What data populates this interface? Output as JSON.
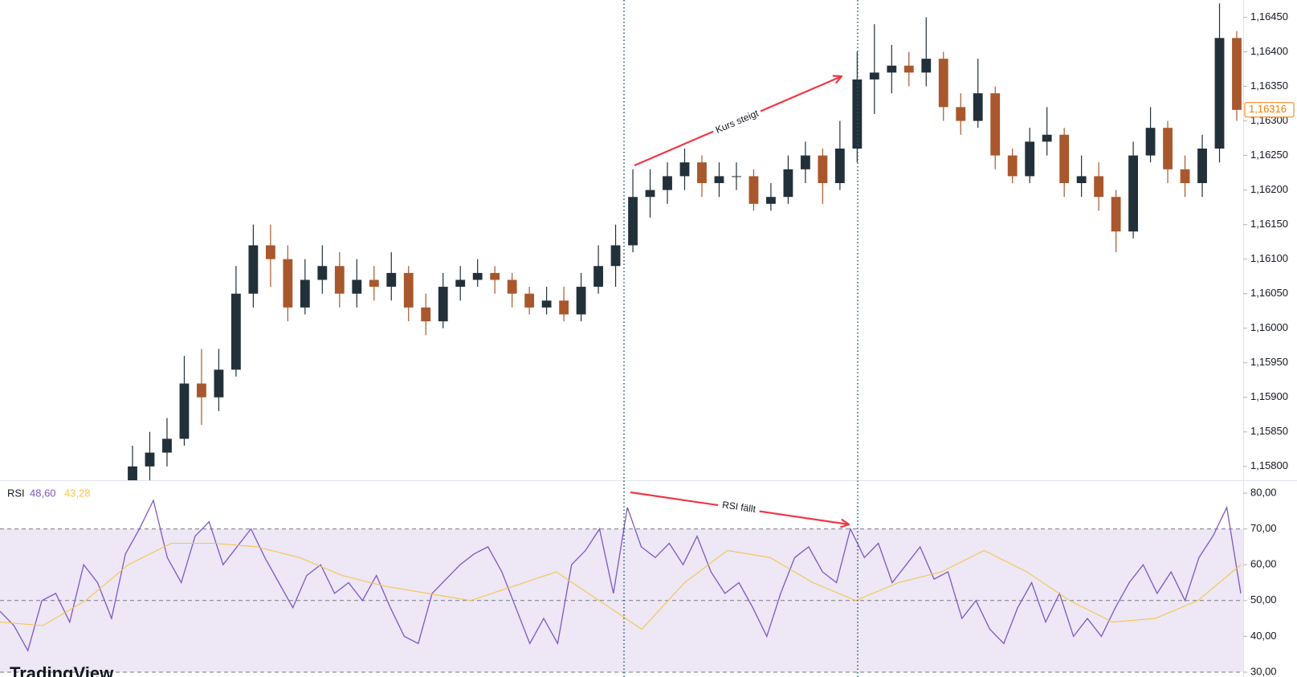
{
  "logo": "TradingView",
  "chart_data": [
    {
      "type": "candlestick",
      "open": [
        1.1578,
        1.158,
        1.1582,
        1.1584,
        1.1592,
        1.159,
        1.1594,
        1.1605,
        1.1612,
        1.161,
        1.1603,
        1.1607,
        1.1609,
        1.1605,
        1.1607,
        1.1606,
        1.1608,
        1.1603,
        1.1601,
        1.1606,
        1.1607,
        1.1608,
        1.1607,
        1.1605,
        1.1603,
        1.1604,
        1.1602,
        1.1606,
        1.1609,
        1.1612,
        1.1619,
        1.162,
        1.1622,
        1.1624,
        1.1621,
        1.1622,
        1.1622,
        1.1618,
        1.1619,
        1.1623,
        1.1625,
        1.1621,
        1.1626,
        1.1636,
        1.1637,
        1.1638,
        1.1637,
        1.1639,
        1.1632,
        1.163,
        1.1634,
        1.1625,
        1.1622,
        1.1627,
        1.1628,
        1.1621,
        1.1622,
        1.1619,
        1.1614,
        1.1625,
        1.1629,
        1.1623,
        1.1621,
        1.1626,
        1.1642
      ],
      "high": [
        1.1583,
        1.1585,
        1.1587,
        1.1596,
        1.1597,
        1.1597,
        1.1609,
        1.1615,
        1.1615,
        1.1612,
        1.161,
        1.1612,
        1.1611,
        1.161,
        1.1609,
        1.1611,
        1.1609,
        1.1605,
        1.1608,
        1.1609,
        1.161,
        1.1609,
        1.1608,
        1.1606,
        1.1606,
        1.1606,
        1.1608,
        1.1612,
        1.1615,
        1.1623,
        1.1623,
        1.1624,
        1.1626,
        1.1625,
        1.1624,
        1.1624,
        1.1623,
        1.1621,
        1.1625,
        1.1627,
        1.1626,
        1.163,
        1.164,
        1.1644,
        1.1641,
        1.164,
        1.1645,
        1.164,
        1.1634,
        1.1639,
        1.1635,
        1.1626,
        1.1629,
        1.1632,
        1.1629,
        1.1625,
        1.1624,
        1.162,
        1.1627,
        1.1632,
        1.163,
        1.1625,
        1.1628,
        1.1647,
        1.1643
      ],
      "low": [
        1.1576,
        1.1578,
        1.158,
        1.1583,
        1.1586,
        1.1588,
        1.1593,
        1.1603,
        1.1606,
        1.1601,
        1.1602,
        1.1605,
        1.1603,
        1.1603,
        1.1604,
        1.1604,
        1.1601,
        1.1599,
        1.16,
        1.1604,
        1.1606,
        1.1605,
        1.1603,
        1.1602,
        1.1602,
        1.1601,
        1.1601,
        1.1605,
        1.1606,
        1.1611,
        1.1616,
        1.1618,
        1.162,
        1.1619,
        1.1619,
        1.162,
        1.1617,
        1.1617,
        1.1618,
        1.1621,
        1.1618,
        1.162,
        1.1624,
        1.1631,
        1.1634,
        1.1635,
        1.1635,
        1.163,
        1.1628,
        1.1629,
        1.1623,
        1.1621,
        1.1621,
        1.1625,
        1.1619,
        1.1619,
        1.1617,
        1.1611,
        1.1613,
        1.1624,
        1.1621,
        1.1619,
        1.1619,
        1.1624,
        1.163
      ],
      "close": [
        1.158,
        1.1582,
        1.1584,
        1.1592,
        1.159,
        1.1594,
        1.1605,
        1.1612,
        1.161,
        1.1603,
        1.1607,
        1.1609,
        1.1605,
        1.1607,
        1.1606,
        1.1608,
        1.1603,
        1.1601,
        1.1606,
        1.1607,
        1.1608,
        1.1607,
        1.1605,
        1.1603,
        1.1604,
        1.1602,
        1.1606,
        1.1609,
        1.1612,
        1.1619,
        1.162,
        1.1622,
        1.1624,
        1.1621,
        1.1622,
        1.1622,
        1.1618,
        1.1619,
        1.1623,
        1.1625,
        1.1621,
        1.1626,
        1.1636,
        1.1637,
        1.1638,
        1.1637,
        1.1639,
        1.1632,
        1.163,
        1.1634,
        1.1625,
        1.1622,
        1.1627,
        1.1628,
        1.1621,
        1.1622,
        1.1619,
        1.1614,
        1.1625,
        1.1629,
        1.1623,
        1.1621,
        1.1626,
        1.1642,
        1.16316
      ],
      "up_color": "#22303a",
      "down_color": "#a8582c",
      "ylim": [
        1.1578,
        1.16475
      ],
      "yticks": [
        {
          "value": 1.158,
          "label": "1,15800"
        },
        {
          "value": 1.1585,
          "label": "1,15850"
        },
        {
          "value": 1.159,
          "label": "1,15900"
        },
        {
          "value": 1.1595,
          "label": "1,15950"
        },
        {
          "value": 1.16,
          "label": "1,16000"
        },
        {
          "value": 1.1605,
          "label": "1,16050"
        },
        {
          "value": 1.161,
          "label": "1,16100"
        },
        {
          "value": 1.1615,
          "label": "1,16150"
        },
        {
          "value": 1.162,
          "label": "1,16200"
        },
        {
          "value": 1.1625,
          "label": "1,16250"
        },
        {
          "value": 1.163,
          "label": "1,16300"
        },
        {
          "value": 1.1635,
          "label": "1,16350"
        },
        {
          "value": 1.164,
          "label": "1,16400"
        },
        {
          "value": 1.1645,
          "label": "1,16450"
        }
      ],
      "last_price": {
        "value": 1.16316,
        "label": "1,16316"
      },
      "last_price_color": "#f57c00",
      "annotations": [
        "Kurs steigt"
      ],
      "grid": false
    },
    {
      "type": "line",
      "title": "RSI",
      "series": [
        {
          "color": "#7e57c2",
          "legend_value": "48,60",
          "values": [
            47,
            43,
            36,
            50,
            52,
            44,
            60,
            55,
            45,
            63,
            70,
            78,
            62,
            55,
            68,
            72,
            60,
            65,
            70,
            62,
            55,
            48,
            57,
            60,
            52,
            55,
            50,
            57,
            48,
            40,
            38,
            52,
            56,
            60,
            63,
            65,
            58,
            48,
            38,
            45,
            38,
            60,
            64,
            70,
            52,
            76,
            65,
            62,
            66,
            60,
            68,
            58,
            52,
            55,
            48,
            40,
            52,
            62,
            65,
            58,
            55,
            70,
            62,
            66,
            55,
            60,
            65,
            56,
            58,
            45,
            50,
            42,
            38,
            48,
            55,
            44,
            52,
            40,
            45,
            40,
            48,
            55,
            60,
            52,
            58,
            50,
            62,
            68,
            76,
            52
          ]
        },
        {
          "color": "#f7c548",
          "legend_value": "43,28",
          "values": [
            44,
            43,
            50,
            60,
            66,
            66,
            65,
            62,
            57,
            54,
            52,
            50,
            54,
            58,
            50,
            42,
            55,
            64,
            62,
            55,
            50,
            55,
            58,
            64,
            58,
            50,
            44,
            45,
            50,
            60
          ]
        }
      ],
      "bands": {
        "upper": 70,
        "middle": 50,
        "lower": 30
      },
      "band_color": "#ede7f6",
      "ylim": [
        28.65,
        83.6
      ],
      "yticks": [
        {
          "value": 30,
          "label": "30,00"
        },
        {
          "value": 40,
          "label": "40,00"
        },
        {
          "value": 50,
          "label": "50,00"
        },
        {
          "value": 60,
          "label": "60,00"
        },
        {
          "value": 70,
          "label": "70,00"
        },
        {
          "value": 80,
          "label": "80,00"
        }
      ],
      "annotations": [
        "RSI fällt"
      ],
      "grid": false
    }
  ]
}
